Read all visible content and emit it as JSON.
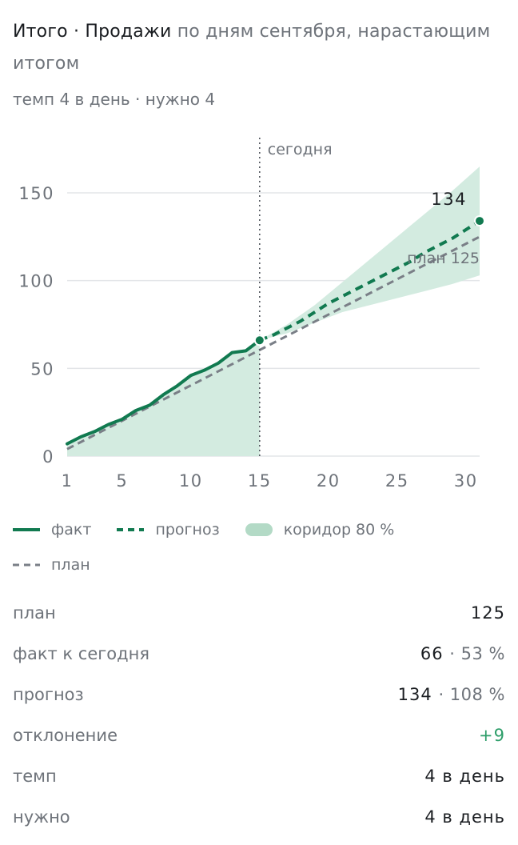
{
  "header": {
    "title_strong": "Итого · Продажи",
    "title_muted": " по дням сентября, нарастающим итогом",
    "subtitle": "темп 4 в день · нужно 4"
  },
  "colors": {
    "fact": "#117a50",
    "forecast": "#117a50",
    "corridor": "#d3ebe0",
    "plan": "#7a7f87",
    "grid": "#e3e5e8",
    "axis_text": "#6e737a",
    "positive": "#2e9e6a"
  },
  "chart_data": {
    "type": "line",
    "x_ticks": [
      1,
      5,
      10,
      15,
      20,
      25,
      30
    ],
    "y_ticks": [
      0,
      50,
      100,
      150
    ],
    "xlim": [
      1,
      31
    ],
    "ylim": [
      0,
      150
    ],
    "grid": true,
    "today_label": "сегодня",
    "today_x": 15,
    "series": [
      {
        "kind": "fact",
        "x": [
          1,
          2,
          3,
          4,
          5,
          6,
          7,
          8,
          9,
          10,
          11,
          12,
          13,
          14,
          15
        ],
        "values": [
          7,
          11,
          14,
          18,
          21,
          26,
          29,
          35,
          40,
          46,
          49,
          53,
          59,
          60,
          66
        ]
      },
      {
        "kind": "forecast",
        "x": [
          15,
          16,
          17,
          18,
          19,
          20,
          21,
          22,
          23,
          24,
          25,
          26,
          27,
          28,
          29,
          30,
          31
        ],
        "values": [
          66,
          69,
          73,
          77,
          82,
          87,
          91,
          95,
          99,
          103,
          107,
          111,
          116,
          120,
          124,
          129,
          134
        ]
      },
      {
        "kind": "plan",
        "x": [
          1,
          31
        ],
        "values": [
          4,
          125
        ]
      }
    ],
    "corridor_past": {
      "x": [
        1,
        2,
        3,
        4,
        5,
        6,
        7,
        8,
        9,
        10,
        11,
        12,
        13,
        14,
        15
      ],
      "upper": [
        7,
        11,
        14,
        18,
        21,
        26,
        29,
        35,
        40,
        46,
        49,
        53,
        59,
        60,
        66
      ]
    },
    "corridor_forecast": {
      "x": [
        15,
        17,
        19,
        21,
        23,
        25,
        27,
        29,
        31
      ],
      "upper": [
        66,
        75,
        86,
        99,
        112,
        125,
        138,
        151,
        165
      ],
      "lower": [
        66,
        70,
        76,
        82,
        86,
        90,
        94,
        98,
        103
      ]
    },
    "end_label": "134",
    "plan_label": "план 125"
  },
  "legend": {
    "fact": "факт",
    "forecast": "прогноз",
    "corridor": "коридор 80 %",
    "plan": "план"
  },
  "stats": {
    "plan_label": "план",
    "plan_value": "125",
    "fact_label": "факт к сегодня",
    "fact_value": "66",
    "fact_pct": "· 53 %",
    "forecast_label": "прогноз",
    "forecast_value": "134",
    "forecast_pct": "· 108 %",
    "deviation_label": "отклонение",
    "deviation_value": "+9",
    "pace_label": "темп",
    "pace_value": "4 в день",
    "needed_label": "нужно",
    "needed_value": "4 в день"
  }
}
